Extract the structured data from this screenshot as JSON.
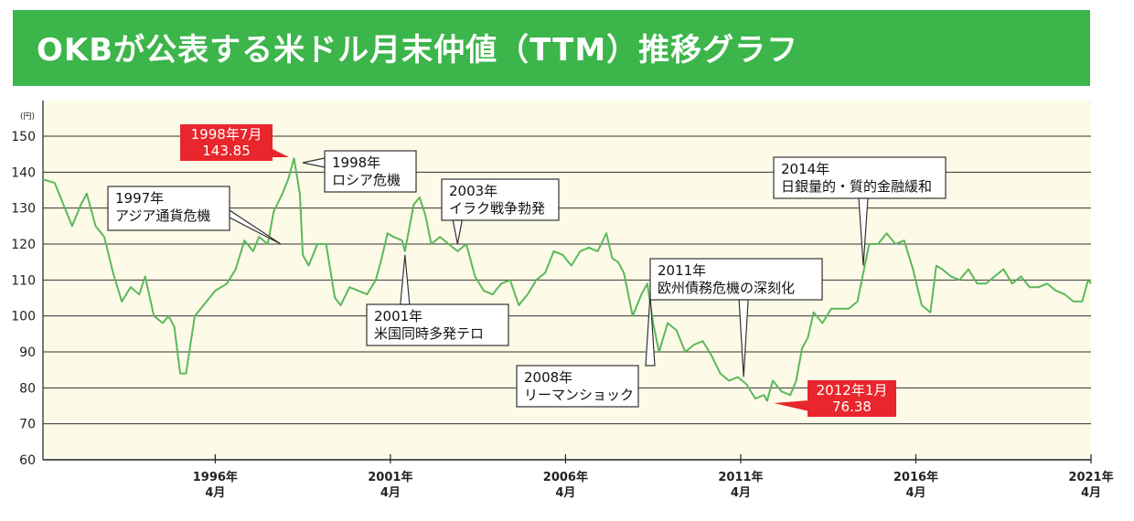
{
  "header": {
    "title": "OKBが公表する米ドル月末仲値（TTM）推移グラフ"
  },
  "chart_data": {
    "type": "line",
    "title": "OKBが公表する米ドル月末仲値（TTM）推移グラフ",
    "ylabel": "(円)",
    "xlabel": "",
    "ylim": [
      60,
      150
    ],
    "xlim": [
      "1991-05",
      "2021-04"
    ],
    "grid": true,
    "yticks": [
      60,
      70,
      80,
      90,
      100,
      110,
      120,
      130,
      140,
      150
    ],
    "xticks": [
      {
        "year": "1996年",
        "month": "4月",
        "date": "1996-04"
      },
      {
        "year": "2001年",
        "month": "4月",
        "date": "2001-04"
      },
      {
        "year": "2006年",
        "month": "4月",
        "date": "2006-04"
      },
      {
        "year": "2011年",
        "month": "4月",
        "date": "2011-04"
      },
      {
        "year": "2016年",
        "month": "4月",
        "date": "2016-04"
      },
      {
        "year": "2021年",
        "month": "4月",
        "date": "2021-04"
      }
    ],
    "series": [
      {
        "color": "#5cb85c",
        "points": [
          [
            "1991-05",
            138
          ],
          [
            "1991-09",
            137
          ],
          [
            "1991-12",
            131
          ],
          [
            "1992-03",
            125
          ],
          [
            "1992-06",
            131
          ],
          [
            "1992-08",
            134
          ],
          [
            "1992-11",
            125
          ],
          [
            "1993-02",
            122
          ],
          [
            "1993-05",
            112
          ],
          [
            "1993-08",
            104
          ],
          [
            "1993-11",
            108
          ],
          [
            "1994-02",
            106
          ],
          [
            "1994-04",
            111
          ],
          [
            "1994-07",
            100
          ],
          [
            "1994-10",
            98
          ],
          [
            "1994-12",
            100
          ],
          [
            "1995-02",
            97
          ],
          [
            "1995-04",
            84
          ],
          [
            "1995-06",
            84
          ],
          [
            "1995-09",
            100
          ],
          [
            "1995-12",
            103
          ],
          [
            "1996-04",
            107
          ],
          [
            "1996-08",
            109
          ],
          [
            "1996-11",
            113
          ],
          [
            "1997-02",
            121
          ],
          [
            "1997-05",
            118
          ],
          [
            "1997-07",
            122
          ],
          [
            "1997-10",
            120
          ],
          [
            "1997-12",
            129
          ],
          [
            "1998-03",
            134
          ],
          [
            "1998-05",
            138
          ],
          [
            "1998-07",
            143.85
          ],
          [
            "1998-09",
            134
          ],
          [
            "1998-10",
            117
          ],
          [
            "1998-12",
            114
          ],
          [
            "1999-03",
            120
          ],
          [
            "1999-06",
            120
          ],
          [
            "1999-09",
            105
          ],
          [
            "1999-11",
            103
          ],
          [
            "2000-02",
            108
          ],
          [
            "2000-05",
            107
          ],
          [
            "2000-08",
            106
          ],
          [
            "2000-11",
            110
          ],
          [
            "2001-01",
            116
          ],
          [
            "2001-03",
            123
          ],
          [
            "2001-05",
            122
          ],
          [
            "2001-08",
            121
          ],
          [
            "2001-09",
            118
          ],
          [
            "2001-12",
            131
          ],
          [
            "2002-02",
            133
          ],
          [
            "2002-04",
            128
          ],
          [
            "2002-06",
            120
          ],
          [
            "2002-09",
            122
          ],
          [
            "2002-12",
            120
          ],
          [
            "2003-03",
            118
          ],
          [
            "2003-06",
            120
          ],
          [
            "2003-09",
            111
          ],
          [
            "2003-12",
            107
          ],
          [
            "2004-03",
            106
          ],
          [
            "2004-06",
            109
          ],
          [
            "2004-09",
            110
          ],
          [
            "2004-12",
            103
          ],
          [
            "2005-03",
            106
          ],
          [
            "2005-06",
            110
          ],
          [
            "2005-09",
            112
          ],
          [
            "2005-12",
            118
          ],
          [
            "2006-03",
            117
          ],
          [
            "2006-06",
            114
          ],
          [
            "2006-09",
            118
          ],
          [
            "2006-12",
            119
          ],
          [
            "2007-03",
            118
          ],
          [
            "2007-06",
            123
          ],
          [
            "2007-08",
            116
          ],
          [
            "2007-10",
            115
          ],
          [
            "2007-12",
            112
          ],
          [
            "2008-03",
            100
          ],
          [
            "2008-06",
            106
          ],
          [
            "2008-08",
            109
          ],
          [
            "2008-10",
            98
          ],
          [
            "2008-12",
            90
          ],
          [
            "2009-03",
            98
          ],
          [
            "2009-06",
            96
          ],
          [
            "2009-09",
            90
          ],
          [
            "2009-12",
            92
          ],
          [
            "2010-03",
            93
          ],
          [
            "2010-06",
            89
          ],
          [
            "2010-09",
            84
          ],
          [
            "2010-12",
            82
          ],
          [
            "2011-03",
            83
          ],
          [
            "2011-06",
            81
          ],
          [
            "2011-09",
            77
          ],
          [
            "2011-12",
            78
          ],
          [
            "2012-01",
            76.38
          ],
          [
            "2012-03",
            82
          ],
          [
            "2012-06",
            79
          ],
          [
            "2012-09",
            78
          ],
          [
            "2012-11",
            82
          ],
          [
            "2013-01",
            91
          ],
          [
            "2013-03",
            94
          ],
          [
            "2013-05",
            101
          ],
          [
            "2013-08",
            98
          ],
          [
            "2013-11",
            102
          ],
          [
            "2014-02",
            102
          ],
          [
            "2014-05",
            102
          ],
          [
            "2014-08",
            104
          ],
          [
            "2014-10",
            112
          ],
          [
            "2014-12",
            120
          ],
          [
            "2015-03",
            120
          ],
          [
            "2015-06",
            123
          ],
          [
            "2015-09",
            120
          ],
          [
            "2015-12",
            121
          ],
          [
            "2016-03",
            113
          ],
          [
            "2016-06",
            103
          ],
          [
            "2016-09",
            101
          ],
          [
            "2016-11",
            114
          ],
          [
            "2017-01",
            113
          ],
          [
            "2017-04",
            111
          ],
          [
            "2017-07",
            110
          ],
          [
            "2017-10",
            113
          ],
          [
            "2018-01",
            109
          ],
          [
            "2018-04",
            109
          ],
          [
            "2018-07",
            111
          ],
          [
            "2018-10",
            113
          ],
          [
            "2019-01",
            109
          ],
          [
            "2019-04",
            111
          ],
          [
            "2019-07",
            108
          ],
          [
            "2019-10",
            108
          ],
          [
            "2020-01",
            109
          ],
          [
            "2020-04",
            107
          ],
          [
            "2020-07",
            106
          ],
          [
            "2020-10",
            104
          ],
          [
            "2021-01",
            104
          ],
          [
            "2021-03",
            110
          ],
          [
            "2021-04",
            109
          ]
        ]
      }
    ],
    "annotations": [
      {
        "lines": [
          "1997年",
          "アジア通貨危機"
        ],
        "date": "1997-07",
        "value": 122
      },
      {
        "lines": [
          "1998年",
          "ロシア危機"
        ],
        "date": "1998-08",
        "value": 141
      },
      {
        "lines": [
          "2001年",
          "米国同時多発テロ"
        ],
        "date": "2001-09",
        "value": 118
      },
      {
        "lines": [
          "2003年",
          "イラク戦争勃発"
        ],
        "date": "2003-03",
        "value": 119
      },
      {
        "lines": [
          "2008年",
          "リーマンショック"
        ],
        "date": "2008-09",
        "value": 107
      },
      {
        "lines": [
          "2011年",
          "欧州債務危機の深刻化"
        ],
        "date": "2011-05",
        "value": 82
      },
      {
        "lines": [
          "2014年",
          "日銀量的・質的金融緩和"
        ],
        "date": "2014-10",
        "value": 113
      }
    ],
    "highlights": [
      {
        "lines": [
          "1998年7月",
          "143.85"
        ],
        "date": "1998-07",
        "value": 143.85,
        "color": "#e8262b"
      },
      {
        "lines": [
          "2012年1月",
          "76.38"
        ],
        "date": "2012-01",
        "value": 76.38,
        "color": "#e8262b"
      }
    ]
  }
}
